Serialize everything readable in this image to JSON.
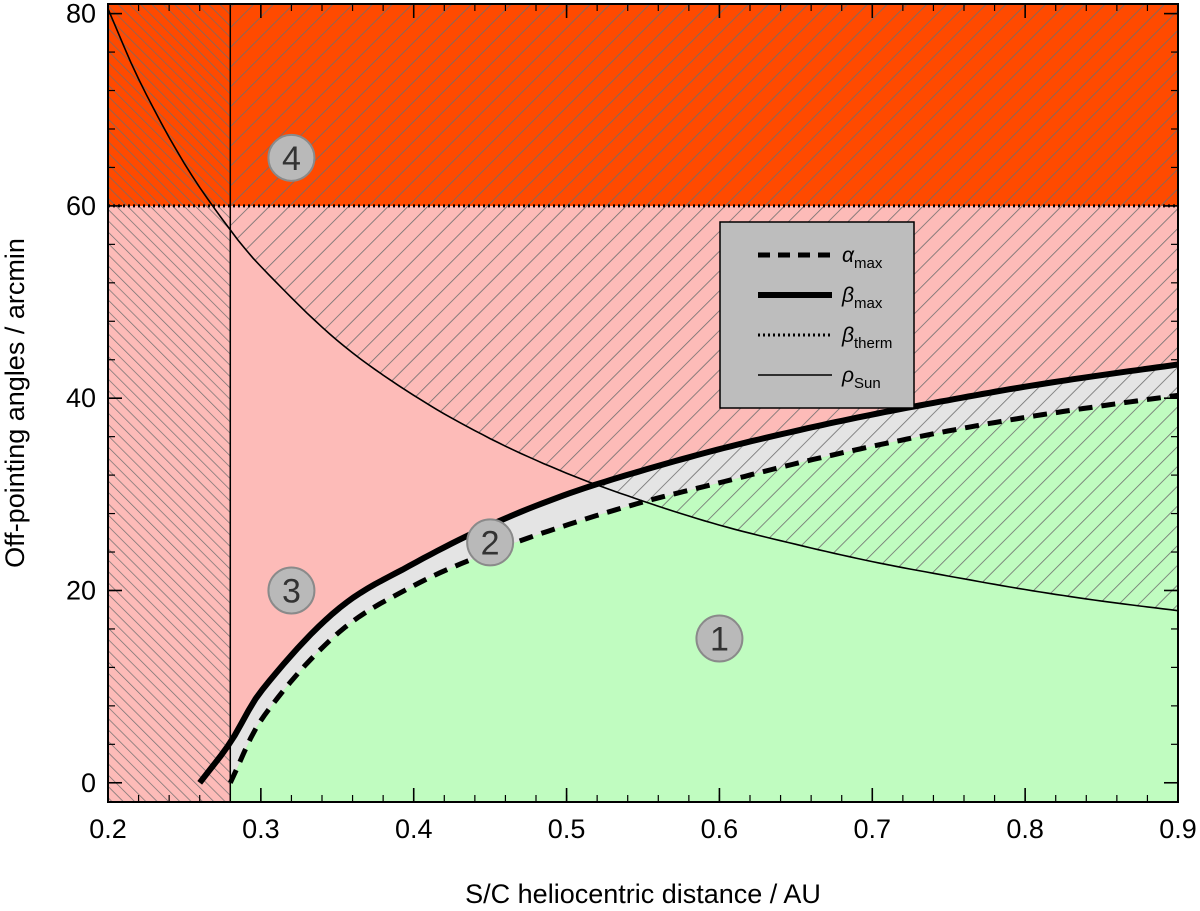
{
  "chart_data": {
    "type": "area",
    "xlabel": "S/C heliocentric distance / AU",
    "ylabel": "Off-pointing angles / arcmin",
    "xlim": [
      0.2,
      0.9
    ],
    "ylim": [
      -2,
      81
    ],
    "x_ticks": [
      0.2,
      0.3,
      0.4,
      0.5,
      0.6,
      0.7,
      0.8,
      0.9
    ],
    "x_tick_labels": [
      "0.2",
      "0.3",
      "0.4",
      "0.5",
      "0.6",
      "0.7",
      "0.8",
      "0.9"
    ],
    "y_ticks": [
      0,
      20,
      40,
      60,
      80
    ],
    "y_tick_labels": [
      "0",
      "20",
      "40",
      "60",
      "80"
    ],
    "perihelion_limit_au": 0.28,
    "series": [
      {
        "name": "α",
        "subscript": "max",
        "style": "dashed",
        "x": [
          0.28,
          0.3,
          0.35,
          0.4,
          0.45,
          0.5,
          0.55,
          0.6,
          0.65,
          0.7,
          0.75,
          0.8,
          0.85,
          0.9
        ],
        "y": [
          0,
          6.5,
          15.5,
          20.5,
          24.0,
          26.8,
          29.2,
          31.2,
          33.2,
          35.0,
          36.6,
          38.0,
          39.2,
          40.3
        ]
      },
      {
        "name": "β",
        "subscript": "max",
        "style": "thick",
        "x": [
          0.26,
          0.28,
          0.3,
          0.35,
          0.4,
          0.45,
          0.5,
          0.55,
          0.6,
          0.65,
          0.7,
          0.75,
          0.8,
          0.85,
          0.9
        ],
        "y": [
          0,
          4.2,
          9.5,
          18.0,
          22.8,
          26.8,
          30.0,
          32.5,
          34.7,
          36.6,
          38.3,
          39.8,
          41.2,
          42.4,
          43.5
        ]
      },
      {
        "name": "β",
        "subscript": "therm",
        "style": "dotted",
        "x": [
          0.2,
          0.9
        ],
        "y": [
          60,
          60
        ]
      },
      {
        "name": "ρ",
        "subscript": "Sun",
        "style": "thin",
        "x": [
          0.2,
          0.22,
          0.25,
          0.28,
          0.3,
          0.35,
          0.4,
          0.45,
          0.5,
          0.55,
          0.6,
          0.65,
          0.7,
          0.75,
          0.8,
          0.85,
          0.9
        ],
        "y": [
          80.5,
          73.2,
          64.4,
          57.5,
          53.7,
          46.0,
          40.3,
          35.8,
          32.2,
          29.3,
          26.8,
          24.8,
          23.0,
          21.5,
          20.1,
          18.9,
          17.9
        ]
      }
    ],
    "regions": [
      {
        "label": "1",
        "x": 0.6,
        "y": 15,
        "color": "#c0fcc0"
      },
      {
        "label": "2",
        "x": 0.45,
        "y": 25,
        "color": "#e4e4e4"
      },
      {
        "label": "3",
        "x": 0.32,
        "y": 20,
        "color": "#fdbbb8"
      },
      {
        "label": "4",
        "x": 0.32,
        "y": 65,
        "color": "#ff4a00"
      }
    ],
    "legend": {
      "placement": "upper-right-inset",
      "entries": [
        {
          "symbol": "α",
          "subscript": "max",
          "style": "dashed"
        },
        {
          "symbol": "β",
          "subscript": "max",
          "style": "thick"
        },
        {
          "symbol": "β",
          "subscript": "therm",
          "style": "dotted"
        },
        {
          "symbol": "ρ",
          "subscript": "Sun",
          "style": "thin"
        }
      ]
    },
    "colors": {
      "green_region": "#c0fcc0",
      "gray_region": "#e4e4e4",
      "pink_region": "#fdbbb8",
      "orange_region": "#ff4a00",
      "hatch": "#6e6e6e",
      "legend_bg": "#bdbdbd"
    }
  }
}
